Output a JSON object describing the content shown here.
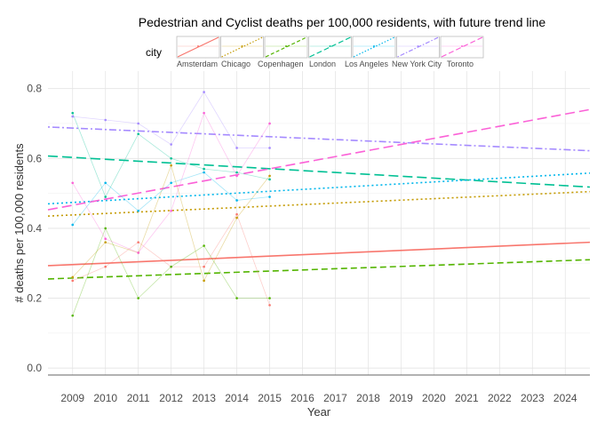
{
  "chart_data": {
    "type": "line",
    "title": "Pedestrian and Cyclist deaths per 100,000 residents, with future trend line",
    "xlabel": "Year",
    "ylabel": "# deaths per 100,000 residents",
    "x_ticks": [
      "2009",
      "2010",
      "2011",
      "2012",
      "2013",
      "2014",
      "2015",
      "2016",
      "2017",
      "2018",
      "2019",
      "2020",
      "2021",
      "2022",
      "2023",
      "2024"
    ],
    "y_ticks": [
      "0.0",
      "0.2",
      "0.4",
      "0.6",
      "0.8"
    ],
    "xlim": [
      2008.25,
      2024.75
    ],
    "ylim": [
      -0.02,
      0.85
    ],
    "grid": true,
    "legend": {
      "title": "city",
      "position": "top"
    },
    "x": [
      2009,
      2010,
      2011,
      2012,
      2013,
      2014,
      2015
    ],
    "series": [
      {
        "name": "Amsterdam",
        "color": "#F8766D",
        "dash": "solid",
        "values": [
          0.25,
          0.29,
          0.36,
          0.29,
          0.29,
          0.44,
          0.18
        ],
        "trend": [
          [
            2008.25,
            0.293
          ],
          [
            2024.75,
            0.36
          ]
        ]
      },
      {
        "name": "Chicago",
        "color": "#C49A00",
        "dash": "dotted",
        "values": [
          0.26,
          0.36,
          0.33,
          0.58,
          0.25,
          0.43,
          0.55
        ],
        "trend": [
          [
            2008.25,
            0.435
          ],
          [
            2024.75,
            0.505
          ]
        ]
      },
      {
        "name": "Copenhagen",
        "color": "#53B400",
        "dash": "dashed",
        "values": [
          0.15,
          0.4,
          0.2,
          0.29,
          0.35,
          0.2,
          0.2
        ],
        "trend": [
          [
            2008.25,
            0.255
          ],
          [
            2024.75,
            0.31
          ]
        ]
      },
      {
        "name": "London",
        "color": "#00C094",
        "dash": "longdash",
        "values": [
          0.73,
          0.49,
          0.67,
          0.6,
          0.57,
          0.56,
          0.54
        ],
        "trend": [
          [
            2008.25,
            0.607
          ],
          [
            2024.75,
            0.518
          ]
        ]
      },
      {
        "name": "Los Angeles",
        "color": "#00B6EB",
        "dash": "dotted",
        "values": [
          0.41,
          0.53,
          0.45,
          0.53,
          0.56,
          0.48,
          0.49
        ],
        "trend": [
          [
            2008.25,
            0.47
          ],
          [
            2024.75,
            0.558
          ]
        ]
      },
      {
        "name": "New York City",
        "color": "#A58AFF",
        "dash": "dotdash",
        "values": [
          0.72,
          0.71,
          0.7,
          0.64,
          0.79,
          0.63,
          0.63
        ],
        "trend": [
          [
            2008.25,
            0.69
          ],
          [
            2024.75,
            0.622
          ]
        ]
      },
      {
        "name": "Toronto",
        "color": "#FB61D7",
        "dash": "longdash",
        "values": [
          0.53,
          0.37,
          0.33,
          0.45,
          0.73,
          0.55,
          0.7
        ],
        "trend": [
          [
            2008.25,
            0.453
          ],
          [
            2024.75,
            0.74
          ]
        ]
      }
    ]
  }
}
